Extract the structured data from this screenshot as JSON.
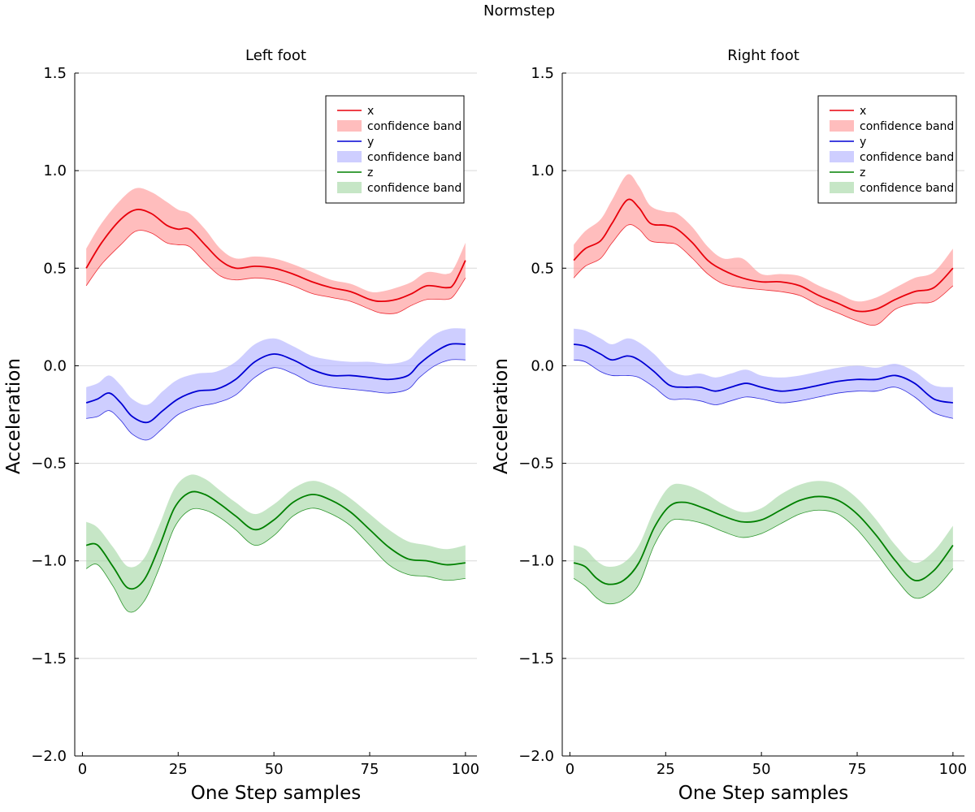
{
  "figure": {
    "suptitle": "Normstep"
  },
  "chart_data": [
    {
      "type": "line",
      "title": "Left foot",
      "xlabel": "One Step samples",
      "ylabel": "Acceleration",
      "xlim": [
        -2,
        103
      ],
      "ylim": [
        -2.0,
        1.5
      ],
      "xticks": [
        0,
        25,
        50,
        75,
        100
      ],
      "xtick_labels": [
        "0",
        "25",
        "50",
        "75",
        "100"
      ],
      "yticks": [
        1.5,
        1.0,
        0.5,
        0.0,
        -0.5,
        -1.0,
        -1.5,
        -2.0
      ],
      "ytick_labels": [
        "1.5",
        "1.0",
        "0.5",
        "0.0",
        "−0.5",
        "−1.0",
        "−1.5",
        "−2.0"
      ],
      "grid": "horizontal",
      "legend_position": "top-right",
      "legend": [
        "x",
        "confidence band",
        "y",
        "confidence band",
        "z",
        "confidence band"
      ],
      "series": [
        {
          "name": "x",
          "color": "#e8000b",
          "band_color": "#ff9a9a",
          "x": [
            1,
            5,
            10,
            14,
            18,
            22,
            25,
            28,
            32,
            36,
            40,
            45,
            50,
            55,
            60,
            65,
            70,
            75,
            78,
            82,
            86,
            90,
            95,
            97,
            100
          ],
          "y": [
            0.5,
            0.63,
            0.75,
            0.8,
            0.78,
            0.72,
            0.7,
            0.7,
            0.62,
            0.54,
            0.5,
            0.51,
            0.5,
            0.47,
            0.43,
            0.4,
            0.38,
            0.34,
            0.33,
            0.34,
            0.37,
            0.41,
            0.4,
            0.42,
            0.54
          ],
          "upper": [
            0.6,
            0.73,
            0.85,
            0.91,
            0.89,
            0.84,
            0.8,
            0.78,
            0.7,
            0.6,
            0.55,
            0.56,
            0.55,
            0.52,
            0.48,
            0.44,
            0.42,
            0.38,
            0.38,
            0.4,
            0.43,
            0.48,
            0.47,
            0.5,
            0.63
          ],
          "lower": [
            0.41,
            0.52,
            0.62,
            0.69,
            0.68,
            0.63,
            0.62,
            0.61,
            0.53,
            0.46,
            0.44,
            0.45,
            0.44,
            0.41,
            0.37,
            0.35,
            0.33,
            0.29,
            0.27,
            0.27,
            0.31,
            0.34,
            0.34,
            0.36,
            0.45
          ]
        },
        {
          "name": "y",
          "color": "#0000d4",
          "band_color": "#b3b3ff",
          "x": [
            1,
            4,
            7,
            10,
            13,
            17,
            21,
            25,
            30,
            35,
            40,
            45,
            50,
            55,
            60,
            65,
            70,
            75,
            80,
            85,
            88,
            92,
            96,
            100
          ],
          "y": [
            -0.19,
            -0.17,
            -0.14,
            -0.19,
            -0.26,
            -0.29,
            -0.23,
            -0.17,
            -0.13,
            -0.12,
            -0.07,
            0.02,
            0.06,
            0.03,
            -0.02,
            -0.05,
            -0.05,
            -0.06,
            -0.07,
            -0.05,
            0.01,
            0.07,
            0.11,
            0.11
          ],
          "upper": [
            -0.11,
            -0.09,
            -0.05,
            -0.1,
            -0.17,
            -0.2,
            -0.13,
            -0.07,
            -0.04,
            -0.03,
            0.02,
            0.11,
            0.14,
            0.1,
            0.05,
            0.03,
            0.02,
            0.02,
            0.01,
            0.03,
            0.09,
            0.16,
            0.19,
            0.19
          ],
          "lower": [
            -0.27,
            -0.26,
            -0.23,
            -0.28,
            -0.35,
            -0.38,
            -0.32,
            -0.25,
            -0.21,
            -0.19,
            -0.15,
            -0.06,
            -0.01,
            -0.04,
            -0.09,
            -0.11,
            -0.12,
            -0.13,
            -0.14,
            -0.12,
            -0.06,
            0.0,
            0.03,
            0.03
          ]
        },
        {
          "name": "z",
          "color": "#008000",
          "band_color": "#a8d8a8",
          "x": [
            1,
            4,
            8,
            12,
            16,
            20,
            24,
            28,
            32,
            36,
            40,
            45,
            50,
            55,
            60,
            65,
            70,
            75,
            80,
            85,
            90,
            95,
            100
          ],
          "y": [
            -0.92,
            -0.92,
            -1.03,
            -1.14,
            -1.1,
            -0.93,
            -0.73,
            -0.65,
            -0.66,
            -0.71,
            -0.77,
            -0.84,
            -0.79,
            -0.7,
            -0.66,
            -0.69,
            -0.75,
            -0.84,
            -0.93,
            -0.99,
            -1.0,
            -1.02,
            -1.01
          ],
          "upper": [
            -0.8,
            -0.83,
            -0.93,
            -1.03,
            -0.99,
            -0.82,
            -0.63,
            -0.56,
            -0.58,
            -0.64,
            -0.7,
            -0.76,
            -0.71,
            -0.63,
            -0.59,
            -0.62,
            -0.68,
            -0.76,
            -0.84,
            -0.9,
            -0.92,
            -0.94,
            -0.92
          ],
          "lower": [
            -1.04,
            -1.02,
            -1.13,
            -1.26,
            -1.21,
            -1.04,
            -0.83,
            -0.74,
            -0.74,
            -0.78,
            -0.84,
            -0.92,
            -0.87,
            -0.77,
            -0.73,
            -0.76,
            -0.82,
            -0.92,
            -1.02,
            -1.07,
            -1.08,
            -1.1,
            -1.09
          ]
        }
      ]
    },
    {
      "type": "line",
      "title": "Right foot",
      "xlabel": "One Step samples",
      "ylabel": "Acceleration",
      "xlim": [
        -2,
        103
      ],
      "ylim": [
        -2.0,
        1.5
      ],
      "xticks": [
        0,
        25,
        50,
        75,
        100
      ],
      "xtick_labels": [
        "0",
        "25",
        "50",
        "75",
        "100"
      ],
      "yticks": [
        1.5,
        1.0,
        0.5,
        0.0,
        -0.5,
        -1.0,
        -1.5,
        -2.0
      ],
      "ytick_labels": [
        "1.5",
        "1.0",
        "0.5",
        "0.0",
        "−0.5",
        "−1.0",
        "−1.5",
        "−2.0"
      ],
      "grid": "horizontal",
      "legend_position": "top-right",
      "legend": [
        "x",
        "confidence band",
        "y",
        "confidence band",
        "z",
        "confidence band"
      ],
      "series": [
        {
          "name": "x",
          "color": "#e8000b",
          "band_color": "#ff9a9a",
          "x": [
            1,
            4,
            8,
            11,
            15,
            18,
            21,
            25,
            28,
            32,
            36,
            40,
            45,
            50,
            55,
            60,
            65,
            70,
            75,
            80,
            85,
            90,
            95,
            100
          ],
          "y": [
            0.54,
            0.6,
            0.64,
            0.73,
            0.85,
            0.81,
            0.73,
            0.72,
            0.7,
            0.63,
            0.54,
            0.49,
            0.45,
            0.43,
            0.43,
            0.41,
            0.36,
            0.32,
            0.28,
            0.29,
            0.34,
            0.38,
            0.4,
            0.5
          ],
          "upper": [
            0.62,
            0.69,
            0.75,
            0.85,
            0.98,
            0.92,
            0.82,
            0.79,
            0.78,
            0.71,
            0.61,
            0.55,
            0.55,
            0.47,
            0.47,
            0.46,
            0.41,
            0.37,
            0.33,
            0.35,
            0.4,
            0.45,
            0.48,
            0.6
          ],
          "lower": [
            0.45,
            0.51,
            0.55,
            0.63,
            0.72,
            0.7,
            0.64,
            0.63,
            0.62,
            0.55,
            0.47,
            0.42,
            0.4,
            0.39,
            0.38,
            0.36,
            0.31,
            0.27,
            0.23,
            0.21,
            0.29,
            0.32,
            0.33,
            0.41
          ]
        },
        {
          "name": "y",
          "color": "#0000d4",
          "band_color": "#b3b3ff",
          "x": [
            1,
            4,
            8,
            11,
            15,
            18,
            22,
            26,
            30,
            34,
            38,
            42,
            46,
            50,
            55,
            60,
            65,
            70,
            75,
            80,
            85,
            90,
            95,
            100
          ],
          "y": [
            0.11,
            0.1,
            0.06,
            0.03,
            0.05,
            0.03,
            -0.03,
            -0.1,
            -0.11,
            -0.11,
            -0.13,
            -0.11,
            -0.09,
            -0.11,
            -0.13,
            -0.12,
            -0.1,
            -0.08,
            -0.07,
            -0.07,
            -0.05,
            -0.09,
            -0.17,
            -0.19
          ],
          "upper": [
            0.19,
            0.18,
            0.14,
            0.11,
            0.14,
            0.12,
            0.06,
            -0.02,
            -0.05,
            -0.04,
            -0.06,
            -0.04,
            -0.02,
            -0.05,
            -0.06,
            -0.05,
            -0.03,
            -0.01,
            0.0,
            -0.01,
            0.01,
            -0.03,
            -0.1,
            -0.11
          ],
          "lower": [
            0.03,
            0.02,
            -0.03,
            -0.05,
            -0.05,
            -0.06,
            -0.11,
            -0.17,
            -0.17,
            -0.18,
            -0.2,
            -0.18,
            -0.16,
            -0.17,
            -0.19,
            -0.18,
            -0.16,
            -0.14,
            -0.13,
            -0.13,
            -0.11,
            -0.16,
            -0.24,
            -0.27
          ]
        },
        {
          "name": "z",
          "color": "#008000",
          "band_color": "#a8d8a8",
          "x": [
            1,
            4,
            7,
            10,
            14,
            18,
            22,
            26,
            30,
            35,
            40,
            45,
            50,
            55,
            60,
            65,
            70,
            75,
            80,
            85,
            90,
            95,
            100
          ],
          "y": [
            -1.01,
            -1.03,
            -1.09,
            -1.12,
            -1.1,
            -1.01,
            -0.83,
            -0.72,
            -0.7,
            -0.73,
            -0.77,
            -0.8,
            -0.79,
            -0.74,
            -0.69,
            -0.67,
            -0.69,
            -0.76,
            -0.87,
            -1.0,
            -1.1,
            -1.05,
            -0.92
          ],
          "upper": [
            -0.92,
            -0.94,
            -1.0,
            -1.03,
            -1.01,
            -0.92,
            -0.74,
            -0.62,
            -0.61,
            -0.65,
            -0.71,
            -0.75,
            -0.73,
            -0.66,
            -0.61,
            -0.59,
            -0.61,
            -0.68,
            -0.79,
            -0.92,
            -1.01,
            -0.95,
            -0.82
          ],
          "lower": [
            -1.09,
            -1.13,
            -1.19,
            -1.22,
            -1.2,
            -1.12,
            -0.92,
            -0.8,
            -0.79,
            -0.81,
            -0.85,
            -0.88,
            -0.86,
            -0.81,
            -0.76,
            -0.74,
            -0.76,
            -0.84,
            -0.96,
            -1.09,
            -1.19,
            -1.15,
            -1.04
          ]
        }
      ]
    }
  ]
}
